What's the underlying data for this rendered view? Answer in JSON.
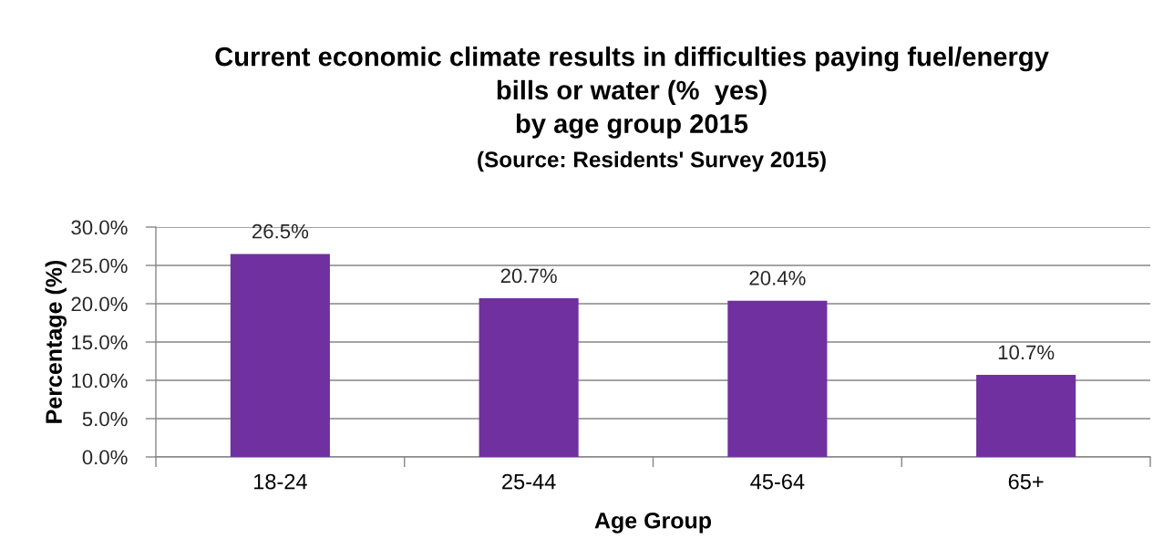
{
  "chart_data": {
    "type": "bar",
    "title": "Current economic climate results in difficulties paying fuel/energy\nbills or water (%  yes)\nby age group 2015",
    "annotations": [
      "(Source: Residents' Survey 2015)"
    ],
    "xlabel": "Age Group",
    "ylabel": "Percentage (%)",
    "categories": [
      "18-24",
      "25-44",
      "45-64",
      "65+"
    ],
    "values": [
      26.5,
      20.7,
      20.4,
      10.7
    ],
    "color": "#7030a0",
    "value_labels": [
      "26.5%",
      "20.7%",
      "20.4%",
      "10.7%"
    ],
    "ylim": [
      0,
      30
    ],
    "yticks": [
      {
        "value": 0,
        "label": "0.0%"
      },
      {
        "value": 5,
        "label": "5.0%"
      },
      {
        "value": 10,
        "label": "10.0%"
      },
      {
        "value": 15,
        "label": "15.0%"
      },
      {
        "value": 20,
        "label": "20.0%"
      },
      {
        "value": 25,
        "label": "25.0%"
      },
      {
        "value": 30,
        "label": "30.0%"
      }
    ],
    "grid": "y"
  }
}
